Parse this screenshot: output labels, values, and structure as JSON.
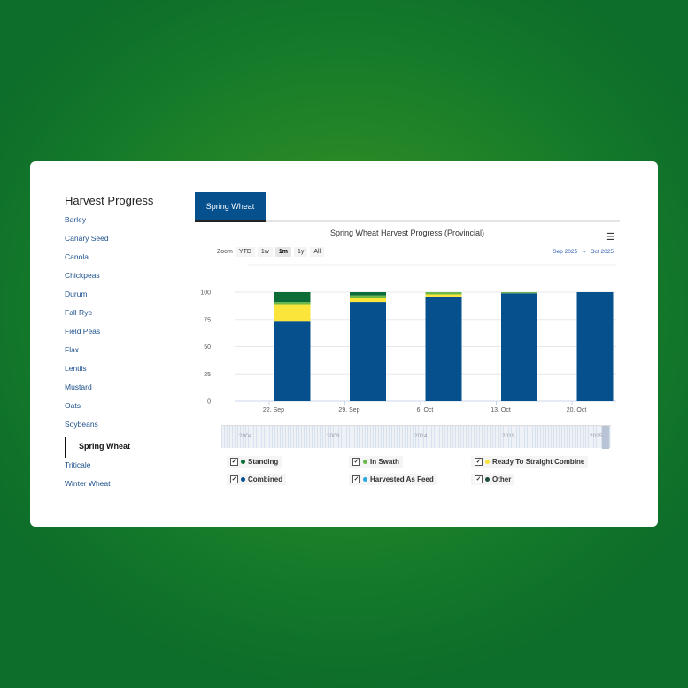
{
  "sidebar": {
    "title": "Harvest Progress",
    "items": [
      "Barley",
      "Canary Seed",
      "Canola",
      "Chickpeas",
      "Durum",
      "Fall Rye",
      "Field Peas",
      "Flax",
      "Lentils",
      "Mustard",
      "Oats",
      "Soybeans",
      "Spring Wheat",
      "Triticale",
      "Winter Wheat"
    ],
    "active": "Spring Wheat"
  },
  "tab": {
    "label": "Spring Wheat"
  },
  "toolbar": {
    "zoom_label": "Zoom",
    "buttons": [
      "YTD",
      "1w",
      "1m",
      "1y",
      "All"
    ],
    "selected": "1m",
    "range_from": "Sep 2025",
    "range_arrow": "→",
    "range_to": "Oct 2025",
    "menu_icon": "hamburger-icon"
  },
  "navigator": {
    "years": [
      "2004",
      "2009",
      "2014",
      "2019",
      "2025"
    ]
  },
  "chart_data": {
    "type": "bar",
    "stacked": true,
    "title": "Spring Wheat Harvest Progress (Provincial)",
    "categories": [
      "22. Sep",
      "29. Sep",
      "6. Oct",
      "13. Oct",
      "20. Oct"
    ],
    "ylim": [
      0,
      100
    ],
    "yticks": [
      0,
      25,
      50,
      75,
      100
    ],
    "grid": true,
    "series": [
      {
        "name": "Combined",
        "color": "#06508e",
        "values": [
          73,
          91,
          96,
          99,
          100
        ]
      },
      {
        "name": "Harvested As Feed",
        "color": "#29a8e0",
        "values": [
          0,
          0,
          0,
          0,
          0
        ]
      },
      {
        "name": "Ready To Straight Combine",
        "color": "#fbe53b",
        "values": [
          16,
          4,
          2,
          0,
          0
        ]
      },
      {
        "name": "In Swath",
        "color": "#6cb94a",
        "values": [
          2,
          2,
          2,
          1,
          0
        ]
      },
      {
        "name": "Standing",
        "color": "#0d6d36",
        "values": [
          9,
          3,
          0,
          0,
          0
        ]
      },
      {
        "name": "Other",
        "color": "#1f4d3a",
        "values": [
          0,
          0,
          0,
          0,
          0
        ]
      }
    ],
    "legend_order": [
      "Standing",
      "In Swath",
      "Ready To Straight Combine",
      "Combined",
      "Harvested As Feed",
      "Other"
    ],
    "legend_position": "bottom"
  }
}
